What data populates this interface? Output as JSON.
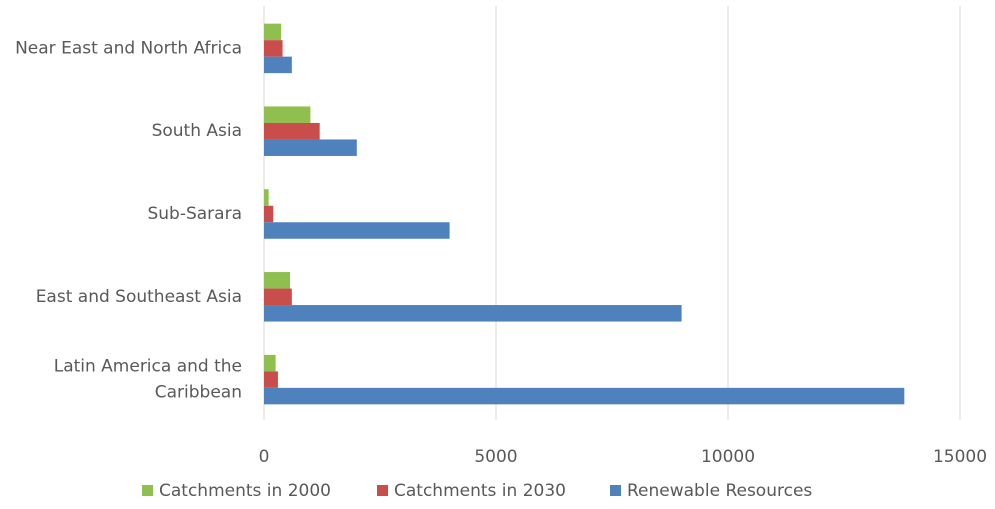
{
  "chart_data": {
    "type": "bar",
    "orientation": "horizontal",
    "categories": [
      "Near East and North Africa",
      "South Asia",
      "Sub-Sarara",
      "East and Southeast Asia",
      "Latin America and the Caribbean"
    ],
    "category_lines": [
      [
        "Near East and North Africa"
      ],
      [
        "South Asia"
      ],
      [
        "Sub-Sarara"
      ],
      [
        "East and Southeast Asia"
      ],
      [
        "Latin America and the",
        "Caribbean"
      ]
    ],
    "series": [
      {
        "name": "Catchments in 2000",
        "color": "#8fbf4f",
        "values": [
          370,
          1000,
          100,
          560,
          250
        ]
      },
      {
        "name": "Catchments in 2030",
        "color": "#c94e4b",
        "values": [
          400,
          1200,
          200,
          600,
          300
        ]
      },
      {
        "name": "Renewable Resources",
        "color": "#4f81bd",
        "values": [
          600,
          2000,
          4000,
          9000,
          13800
        ]
      }
    ],
    "xlim": [
      0,
      15000
    ],
    "xticks": [
      0,
      5000,
      10000,
      15000
    ],
    "xtick_labels": [
      "0",
      "5000",
      "10000",
      "15000"
    ],
    "grid": true,
    "legend_position": "bottom",
    "title": "",
    "xlabel": "",
    "ylabel": ""
  }
}
